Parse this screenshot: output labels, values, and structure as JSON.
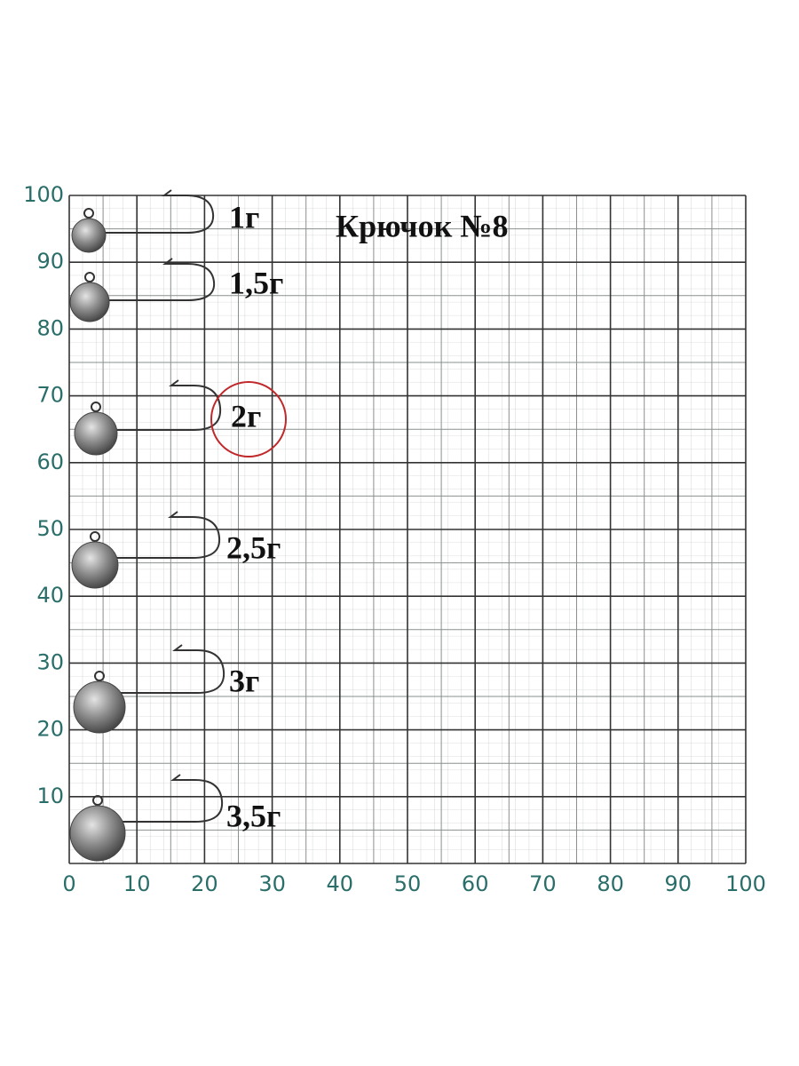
{
  "title": "Крючок №8",
  "x_axis": {
    "ticks": [
      0,
      10,
      20,
      30,
      40,
      50,
      60,
      70,
      80,
      90,
      100
    ]
  },
  "y_axis": {
    "ticks": [
      10,
      20,
      30,
      40,
      50,
      60,
      70,
      80,
      90,
      100
    ]
  },
  "items": [
    {
      "label": "1г",
      "circled": false
    },
    {
      "label": "1,5г",
      "circled": false
    },
    {
      "label": "2г",
      "circled": true
    },
    {
      "label": "2,5г",
      "circled": false
    },
    {
      "label": "3г",
      "circled": false
    },
    {
      "label": "3,5г",
      "circled": false
    }
  ]
}
